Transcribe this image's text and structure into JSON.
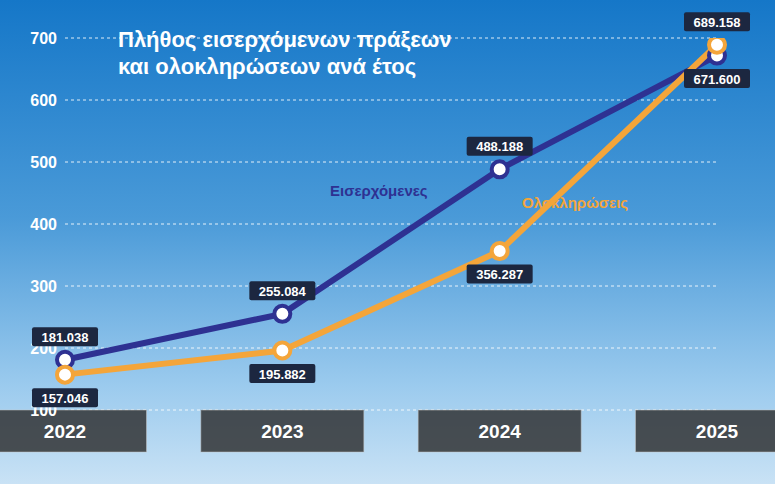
{
  "chart_data": {
    "type": "line",
    "title": "Πλήθος εισερχόμενων πράξεων και ολοκληρώσεων ανά έτος",
    "categories": [
      "2022",
      "2023",
      "2024",
      "2025"
    ],
    "series": [
      {
        "name": "Εισερχόμενες",
        "color": "#2e3192",
        "marker": "circle",
        "values": [
          181.038,
          255.084,
          488.188,
          671.6
        ],
        "value_labels": [
          "181.038",
          "255.084",
          "488.188",
          "671.600"
        ]
      },
      {
        "name": "Ολοκληρώσεις",
        "color": "#f4a53a",
        "marker": "circle",
        "values": [
          157.046,
          195.882,
          356.287,
          689.158
        ],
        "value_labels": [
          "157.046",
          "195.882",
          "356.287",
          "689.158"
        ]
      }
    ],
    "ylim": [
      100,
      700
    ],
    "yticks": [
      100,
      200,
      300,
      400,
      500,
      600,
      700
    ],
    "grid": true,
    "data_labels": true
  }
}
